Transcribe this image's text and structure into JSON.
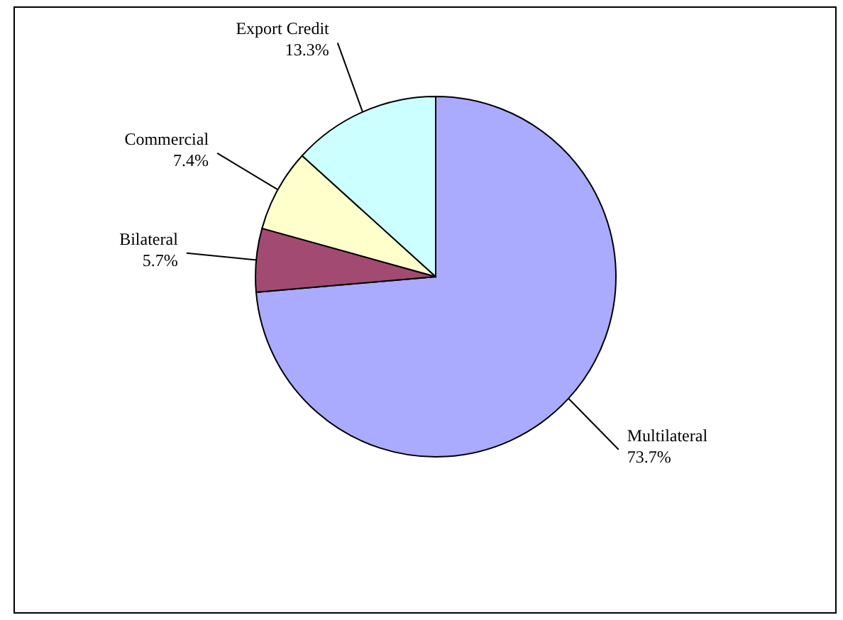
{
  "chart_data": {
    "type": "pie",
    "categories": [
      "Multilateral",
      "Bilateral",
      "Commercial",
      "Export Credit"
    ],
    "values": [
      73.7,
      5.7,
      7.4,
      13.3
    ],
    "value_labels": [
      "73.7%",
      "5.7%",
      "7.4%",
      "13.3%"
    ],
    "colors": [
      "#aaaaff",
      "#a34a72",
      "#ffffcc",
      "#ccffff"
    ]
  }
}
